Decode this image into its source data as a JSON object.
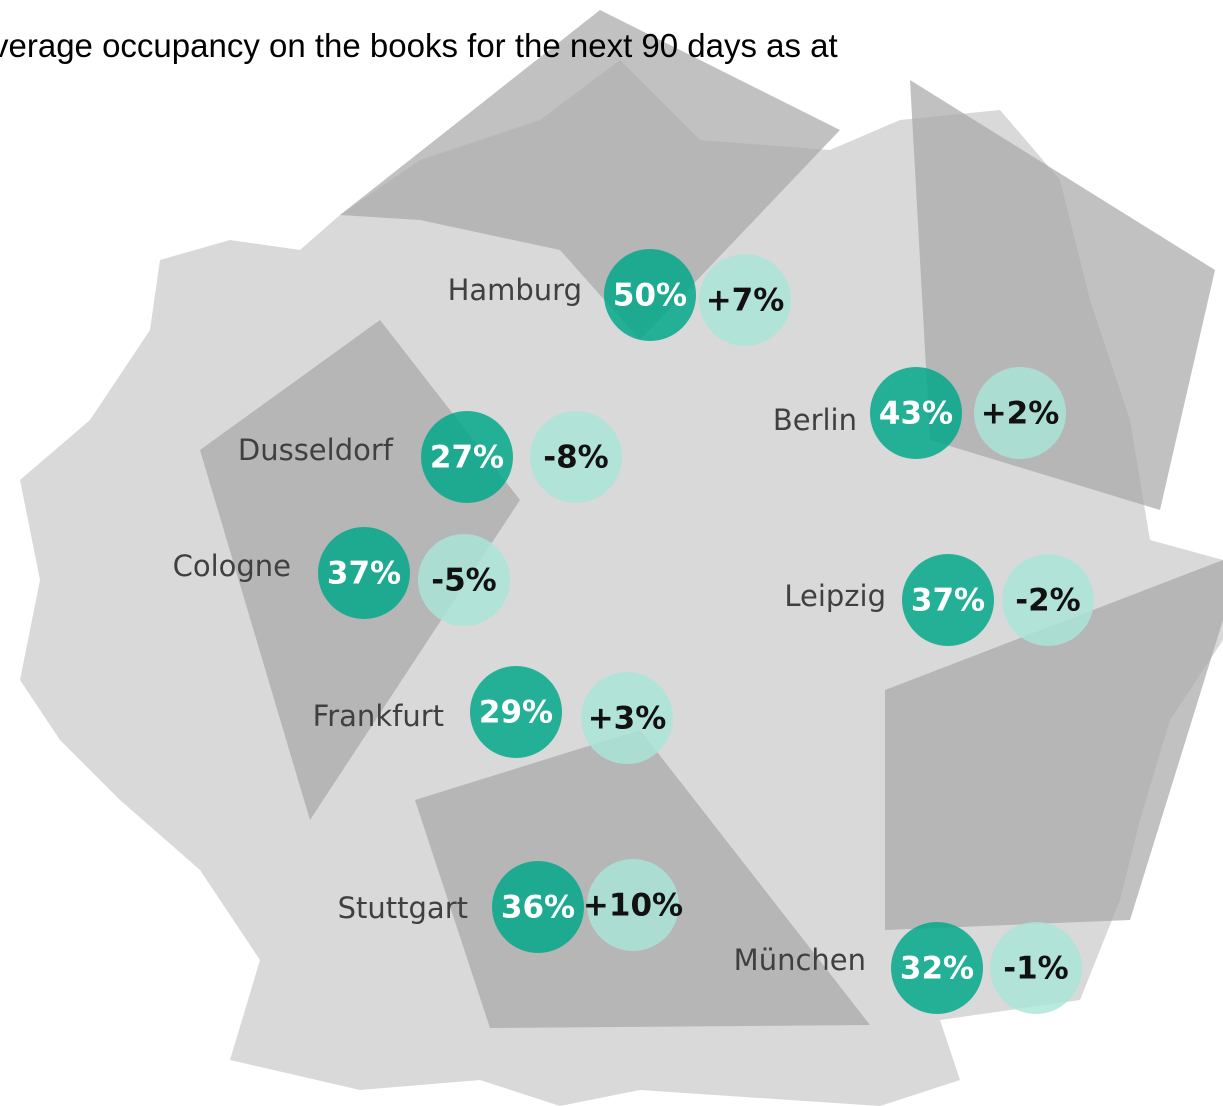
{
  "subtitle": "verage occupancy on the books for the next 90 days as at",
  "cities": [
    {
      "name": "Hamburg",
      "occupancy": "50%",
      "change": "+7%"
    },
    {
      "name": "Berlin",
      "occupancy": "43%",
      "change": "+2%"
    },
    {
      "name": "Dusseldorf",
      "occupancy": "27%",
      "change": "-8%"
    },
    {
      "name": "Cologne",
      "occupancy": "37%",
      "change": "-5%"
    },
    {
      "name": "Leipzig",
      "occupancy": "37%",
      "change": "-2%"
    },
    {
      "name": "Frankfurt",
      "occupancy": "29%",
      "change": "+3%"
    },
    {
      "name": "Stuttgart",
      "occupancy": "36%",
      "change": "+10%"
    },
    {
      "name": "München",
      "occupancy": "32%",
      "change": "-1%"
    }
  ]
}
